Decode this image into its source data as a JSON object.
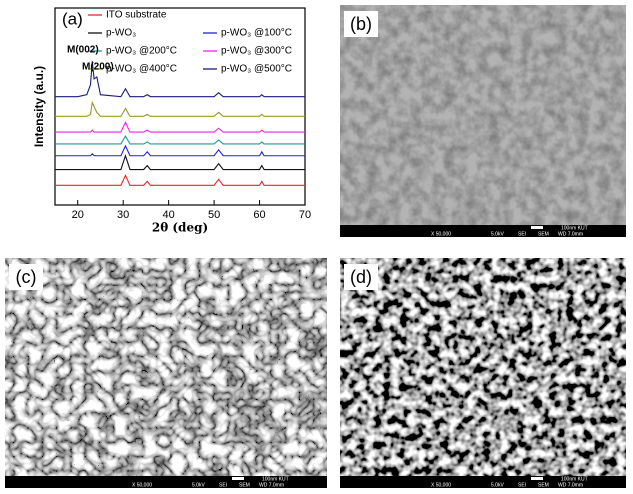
{
  "chart_data": {
    "type": "line",
    "panel_label": "(a)",
    "xlabel": "2θ (deg)",
    "ylabel": "Intensity (a.u.)",
    "annotations": [
      "M(002)",
      "M(200)"
    ],
    "x": [
      15,
      20,
      22,
      22.8,
      23.2,
      23.6,
      24.2,
      25,
      29.5,
      30.5,
      31.5,
      34.5,
      35.3,
      36,
      45,
      50,
      51,
      52,
      55,
      60,
      60.5,
      61,
      65,
      70
    ],
    "xlim": [
      15,
      70
    ],
    "xticks": [
      20,
      30,
      40,
      50,
      60,
      70
    ],
    "ylim": [
      0,
      100
    ],
    "legend": "top",
    "series": [
      {
        "name": "ITO substrate",
        "color": "#e8262b",
        "values": [
          10,
          10,
          10,
          10,
          10,
          10,
          10,
          10,
          10,
          15,
          10,
          10,
          12,
          10,
          10,
          10,
          13,
          10,
          10,
          10,
          12,
          10,
          10,
          10
        ]
      },
      {
        "name": "p-WO₃",
        "color": "#111111",
        "values": [
          18,
          18,
          18,
          18,
          18,
          18,
          18,
          18,
          18,
          25,
          18,
          18,
          20,
          18,
          18,
          18,
          21,
          18,
          18,
          18,
          20,
          18,
          18,
          18
        ]
      },
      {
        "name": "p-WO₃ @100°C",
        "color": "#2222cc",
        "values": [
          25,
          25,
          25,
          25,
          26,
          25,
          25,
          25,
          25,
          30,
          25,
          25,
          27,
          25,
          25,
          25,
          28,
          25,
          25,
          25,
          27,
          25,
          25,
          25
        ]
      },
      {
        "name": "p-WO₃ @200°C",
        "color": "#1f9a9a",
        "values": [
          31,
          31,
          31,
          31,
          31,
          31,
          31,
          31,
          31,
          35,
          31,
          31,
          32,
          31,
          31,
          31,
          33,
          31,
          31,
          31,
          32,
          31,
          31,
          31
        ]
      },
      {
        "name": "p-WO₃ @300°C",
        "color": "#ee22ee",
        "values": [
          37,
          37,
          37,
          37,
          38,
          37,
          37,
          37,
          37,
          42,
          37,
          37,
          38,
          37,
          37,
          37,
          39,
          37,
          37,
          37,
          38,
          37,
          37,
          37
        ]
      },
      {
        "name": "p-WO₃ @400°C",
        "color": "#9a9a22",
        "values": [
          45,
          45,
          45,
          46,
          52,
          50,
          47,
          45,
          45,
          49,
          45,
          45,
          46,
          45,
          45,
          45,
          47,
          45,
          45,
          45,
          46,
          45,
          45,
          45
        ]
      },
      {
        "name": "p-WO₃ @500°C",
        "color": "#1a1a80",
        "values": [
          55,
          55,
          56,
          61,
          73,
          64,
          65,
          56,
          55,
          59,
          55,
          55,
          56,
          55,
          55,
          55,
          57,
          55,
          55,
          55,
          56,
          55,
          55,
          55
        ]
      }
    ]
  },
  "panels": [
    {
      "label": "(b)",
      "scale": "100nm KUT",
      "info": [
        "X 50,000",
        "5.0kV",
        "SEI",
        "SEM",
        "WD 7.0mm"
      ]
    },
    {
      "label": "(c)",
      "scale": "100nm KUT",
      "info": [
        "X 50,000",
        "5.0kV",
        "SEI",
        "SEM",
        "WD 7.0mm"
      ]
    },
    {
      "label": "(d)",
      "scale": "100nm KUT",
      "info": [
        "X 50,000",
        "5.0kV",
        "SEI",
        "SEM",
        "WD 7.0mm"
      ]
    }
  ]
}
